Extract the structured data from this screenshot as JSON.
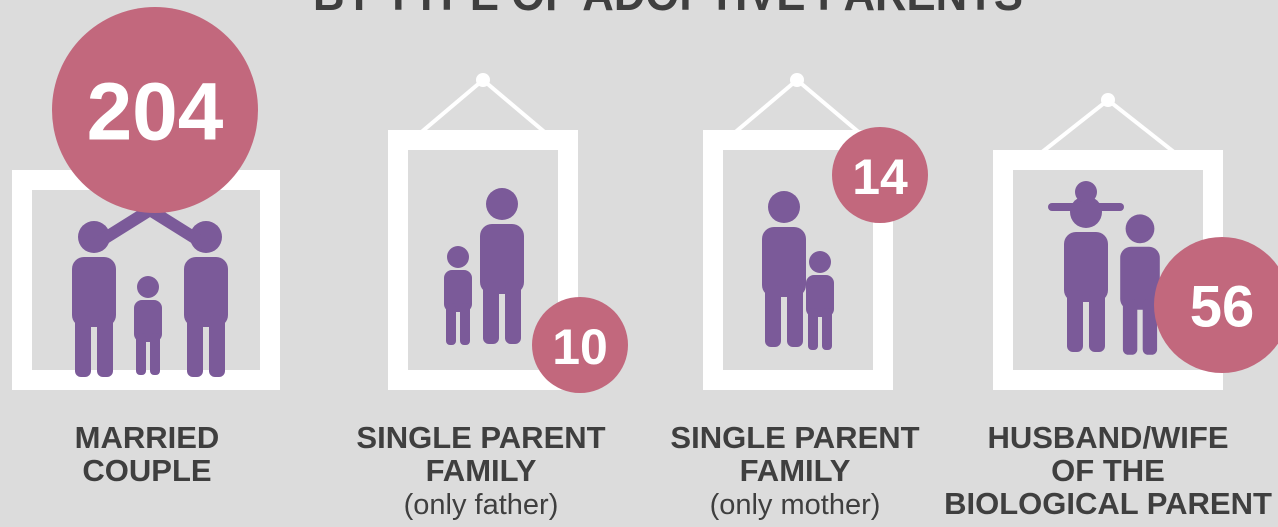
{
  "title": "BY TYPE OF ADOPTIVE PARENTS",
  "items": [
    {
      "count": 204,
      "label": [
        "MARRIED",
        "COUPLE"
      ]
    },
    {
      "count": 10,
      "label": [
        "SINGLE PARENT",
        "FAMILY"
      ],
      "note": "(only father)"
    },
    {
      "count": 14,
      "label": [
        "SINGLE PARENT",
        "FAMILY"
      ],
      "note": "(only mother)"
    },
    {
      "count": 56,
      "label": [
        "HUSBAND/WIFE",
        "OF THE",
        "BIOLOGICAL PARENT"
      ]
    }
  ]
}
